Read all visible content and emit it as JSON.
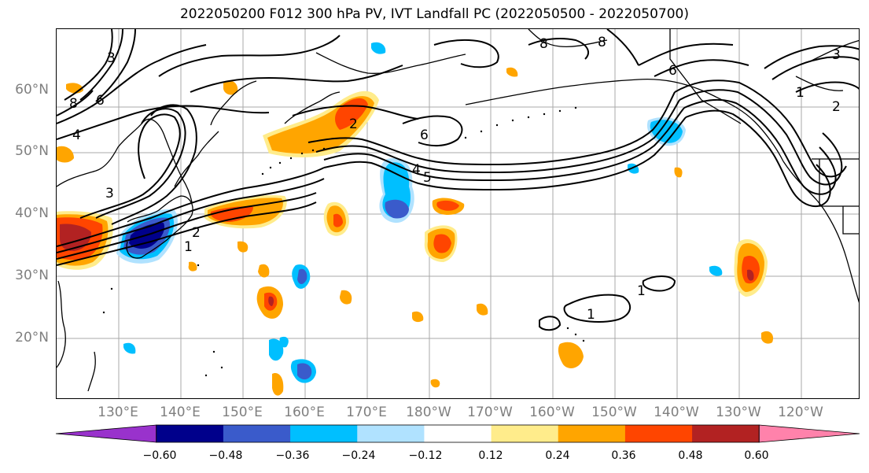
{
  "title": "2022050200 F012 300 hPa PV, IVT Landfall PC (2022050500 - 2022050700)",
  "map": {
    "lat_labels": [
      "60°N",
      "50°N",
      "40°N",
      "30°N",
      "20°N"
    ],
    "lon_labels": [
      "130°E",
      "140°E",
      "150°E",
      "160°E",
      "170°E",
      "180°W",
      "170°W",
      "160°W",
      "150°W",
      "140°W",
      "130°W",
      "120°W"
    ],
    "contour_labels": [
      "3",
      "6",
      "8",
      "4",
      "1",
      "2",
      "6",
      "2",
      "4",
      "5",
      "3",
      "8",
      "8",
      "6",
      "3",
      "2",
      "1",
      "1",
      "1"
    ],
    "grid": true,
    "coastline_color": "#000000"
  },
  "colorbar": {
    "tick_labels": [
      "−0.60",
      "−0.48",
      "−0.36",
      "−0.24",
      "−0.12",
      "0.12",
      "0.24",
      "0.36",
      "0.48",
      "0.60"
    ],
    "colors": [
      "#9932CC",
      "#00008B",
      "#3A5BCB",
      "#00BFFF",
      "#B0E2FF",
      "#FFFFFF",
      "#FFEC8B",
      "#FFA500",
      "#FF4500",
      "#B22222",
      "#FF82AB"
    ],
    "extend": "both"
  }
}
